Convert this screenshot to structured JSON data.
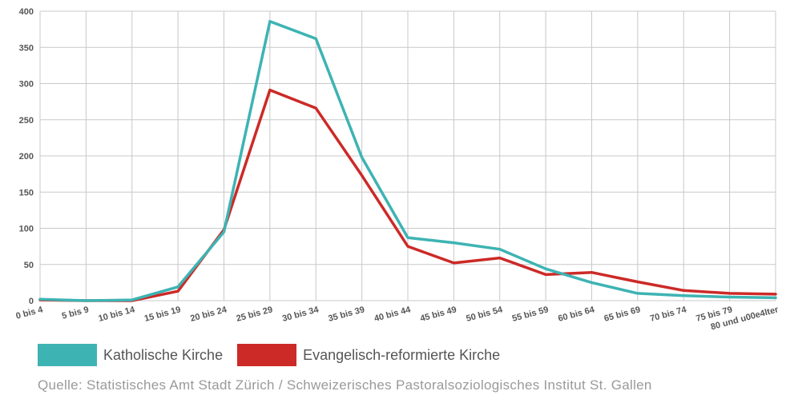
{
  "chart_data": {
    "type": "line",
    "categories": [
      "0 bis 4",
      "5 bis 9",
      "10 bis 14",
      "15 bis 19",
      "20 bis 24",
      "25 bis 29",
      "30 bis 34",
      "35 bis 39",
      "40 bis 44",
      "45 bis 49",
      "50 bis 54",
      "55 bis 59",
      "60 bis 64",
      "65 bis 69",
      "70 bis 74",
      "75 bis 79",
      "80 und u00e4lter"
    ],
    "series": [
      {
        "name": "Katholische Kirche",
        "color": "#3eb3b3",
        "values": [
          2,
          0,
          1,
          19,
          95,
          386,
          362,
          198,
          87,
          80,
          71,
          44,
          25,
          10,
          7,
          5,
          4
        ]
      },
      {
        "name": "Evangelisch-reformierte Kirche",
        "color": "#cc2a27",
        "values": [
          1,
          0,
          0,
          13,
          98,
          291,
          266,
          173,
          75,
          52,
          59,
          36,
          39,
          26,
          14,
          10,
          9
        ]
      }
    ],
    "yticks": [
      "0",
      "50",
      "100",
      "150",
      "200",
      "250",
      "300",
      "350",
      "400"
    ],
    "ylim": [
      0,
      400
    ],
    "grid": true,
    "legend_position": "bottom-left"
  },
  "source": "Quelle: Statistisches Amt Stadt Zürich / Schweizerisches Pastoralsoziologisches Institut St. Gallen"
}
